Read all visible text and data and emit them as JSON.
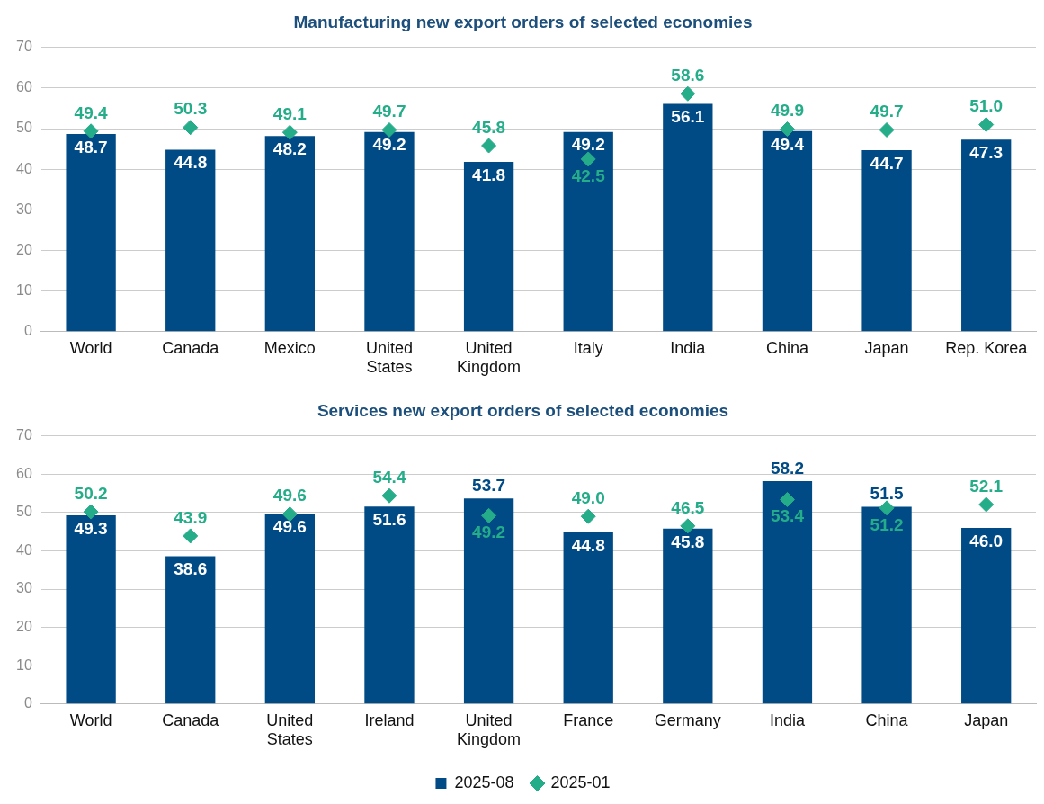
{
  "chart_data": [
    {
      "type": "bar",
      "title": "Manufacturing new export orders of selected economies",
      "categories": [
        "World",
        "Canada",
        "Mexico",
        "United States",
        "United Kingdom",
        "Italy",
        "India",
        "China",
        "Japan",
        "Rep. Korea"
      ],
      "series": [
        {
          "color": "#004b85",
          "values": [
            48.7,
            44.8,
            48.2,
            49.2,
            41.8,
            49.2,
            56.1,
            49.4,
            44.7,
            47.3
          ],
          "value_labels": [
            "48.7",
            "44.8",
            "48.2",
            "49.2",
            "41.8",
            "49.2",
            "56.1",
            "49.4",
            "44.7",
            "47.3"
          ]
        },
        {
          "type": "scatter",
          "marker": "diamond",
          "color": "#25ad8a",
          "values": [
            49.4,
            50.3,
            49.1,
            49.7,
            45.8,
            42.5,
            58.6,
            49.9,
            49.7,
            51.0
          ],
          "value_labels": [
            "49.4",
            "50.3",
            "49.1",
            "49.7",
            "45.8",
            "42.5",
            "58.6",
            "49.9",
            "49.7",
            "51.0"
          ]
        }
      ],
      "ylim": [
        0,
        70
      ],
      "yticks": [
        0,
        10,
        20,
        30,
        40,
        50,
        60,
        70
      ],
      "grid": "y",
      "legend": false
    },
    {
      "type": "bar",
      "title": "Services new export orders of selected economies",
      "categories": [
        "World",
        "Canada",
        "United States",
        "Ireland",
        "United Kingdom",
        "France",
        "Germany",
        "India",
        "China",
        "Japan"
      ],
      "series": [
        {
          "name": "2025-08",
          "color": "#004b85",
          "values": [
            49.3,
            38.6,
            49.6,
            51.6,
            53.7,
            44.8,
            45.8,
            58.2,
            51.5,
            46.0
          ],
          "value_labels": [
            "49.3",
            "38.6",
            "49.6",
            "51.6",
            "53.7",
            "44.8",
            "45.8",
            "58.2",
            "51.5",
            "46.0"
          ]
        },
        {
          "type": "scatter",
          "name": "2025-01",
          "marker": "diamond",
          "color": "#25ad8a",
          "values": [
            50.2,
            43.9,
            49.6,
            54.4,
            49.2,
            49.0,
            46.5,
            53.4,
            51.2,
            52.1
          ],
          "value_labels": [
            "50.2",
            "43.9",
            "49.6",
            "54.4",
            "49.2",
            "49.0",
            "46.5",
            "53.4",
            "51.2",
            "52.1"
          ]
        }
      ],
      "ylim": [
        0,
        70
      ],
      "yticks": [
        0,
        10,
        20,
        30,
        40,
        50,
        60,
        70
      ],
      "grid": "y",
      "legend": "bottom"
    }
  ]
}
